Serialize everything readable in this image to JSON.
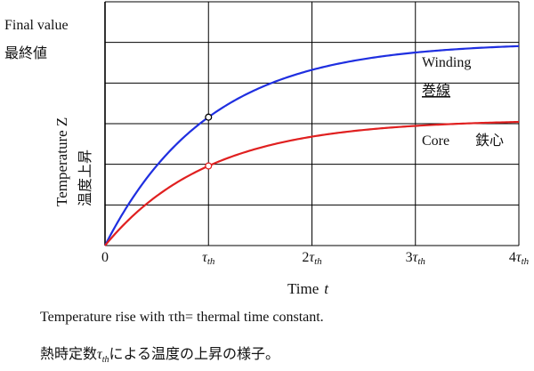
{
  "chart_data": {
    "type": "line",
    "final_value_label": "Final value",
    "final_value_label_jp": "最終値",
    "ylabel": "Temperature Z",
    "ylabel_jp": "温度上昇",
    "xlabel": "Time",
    "xlabel_var": "t",
    "xlim": [
      0,
      4
    ],
    "ylim": [
      0,
      6
    ],
    "grid": true,
    "x_ticks": [
      {
        "value": 0,
        "coef": "0",
        "sym": ""
      },
      {
        "value": 1,
        "coef": "",
        "sym": "τth"
      },
      {
        "value": 2,
        "coef": "2",
        "sym": "τth"
      },
      {
        "value": 3,
        "coef": "3",
        "sym": "τth"
      },
      {
        "value": 4,
        "coef": "4",
        "sym": "τth"
      }
    ],
    "series": [
      {
        "name": "Winding",
        "name_jp": "巻線",
        "color": "#1f2fe0",
        "final_value": 5.0,
        "marker": {
          "x": 1,
          "y": 3.16
        }
      },
      {
        "name": "Core",
        "name_jp": "鉄心",
        "color": "#e02020",
        "final_value": 3.1,
        "marker": {
          "x": 1,
          "y": 1.96
        }
      }
    ]
  },
  "caption_en": "Temperature rise with  τth= thermal time constant.",
  "caption_jp_pre": "熱時定数",
  "caption_jp_tau": "τ",
  "caption_jp_tau_sub": "th",
  "caption_jp_post": "による温度の上昇の様子。"
}
